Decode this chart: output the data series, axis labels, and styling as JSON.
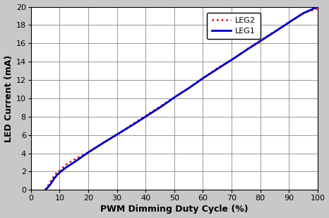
{
  "title": "",
  "xlabel": "PWM Dimming Duty Cycle (%)",
  "ylabel": "LED Current (mA)",
  "xlim": [
    0,
    100
  ],
  "ylim": [
    0,
    20
  ],
  "xticks": [
    0,
    10,
    20,
    30,
    40,
    50,
    60,
    70,
    80,
    90,
    100
  ],
  "yticks": [
    0,
    2,
    4,
    6,
    8,
    10,
    12,
    14,
    16,
    18,
    20
  ],
  "leg1_color": "#0000bb",
  "leg2_color": "#dd0000",
  "leg1_label": "LEG1",
  "leg2_label": "LEG2",
  "leg1_x": [
    5,
    6,
    7,
    8,
    9,
    10,
    12,
    15,
    20,
    25,
    30,
    35,
    40,
    45,
    50,
    55,
    60,
    65,
    70,
    75,
    80,
    85,
    90,
    95,
    100
  ],
  "leg1_y": [
    0.0,
    0.3,
    0.7,
    1.2,
    1.6,
    1.9,
    2.4,
    3.0,
    4.1,
    5.1,
    6.05,
    7.0,
    8.0,
    9.0,
    10.1,
    11.1,
    12.2,
    13.2,
    14.2,
    15.25,
    16.25,
    17.25,
    18.3,
    19.3,
    20.0
  ],
  "leg2_x": [
    5,
    6,
    7,
    8,
    9,
    10,
    12,
    15,
    20,
    25,
    30,
    35,
    40,
    45,
    50,
    55,
    60,
    65,
    70,
    75,
    80,
    85,
    90,
    95,
    100
  ],
  "leg2_y": [
    0.0,
    0.5,
    1.0,
    1.5,
    1.9,
    2.1,
    2.7,
    3.3,
    4.1,
    5.1,
    6.0,
    7.1,
    8.1,
    9.1,
    10.1,
    11.1,
    12.2,
    13.3,
    14.2,
    15.3,
    16.3,
    17.3,
    18.3,
    19.3,
    19.8
  ],
  "outer_bg_color": "#c8c8c8",
  "plot_bg_color": "#ffffff",
  "grid_color": "#888888",
  "legend_fontsize": 8,
  "axis_fontsize": 8,
  "label_fontsize": 9,
  "fig_width": 4.66,
  "fig_height": 3.08,
  "dpi": 100
}
